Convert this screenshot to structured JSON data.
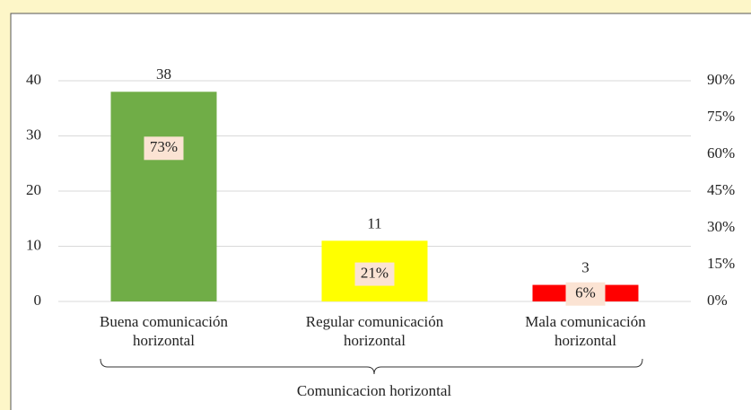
{
  "chart_data": {
    "type": "bar",
    "categories": [
      [
        "Buena  comunicación",
        "horizontal"
      ],
      [
        "Regular comunicación",
        "horizontal"
      ],
      [
        "Mala comunicación",
        "horizontal"
      ]
    ],
    "values": [
      38,
      11,
      3
    ],
    "colors": [
      "#70ad47",
      "#ffff00",
      "#ff0000"
    ],
    "share": {
      "values": [
        73,
        21,
        6
      ],
      "value_labels": [
        "73%",
        "21%",
        "6%"
      ]
    },
    "x_label": "Comunicacion horizontal",
    "ylim": [
      0,
      40
    ],
    "yticks": [
      0,
      10,
      20,
      30,
      40
    ],
    "y2lim": [
      0,
      90
    ],
    "y2ticks": [
      {
        "value": 0,
        "label": "0%"
      },
      {
        "value": 15,
        "label": "15%"
      },
      {
        "value": 30,
        "label": "30%"
      },
      {
        "value": 45,
        "label": "45%"
      },
      {
        "value": 60,
        "label": "60%"
      },
      {
        "value": 75,
        "label": "75%"
      },
      {
        "value": 90,
        "label": "90%"
      }
    ],
    "grid": true
  }
}
